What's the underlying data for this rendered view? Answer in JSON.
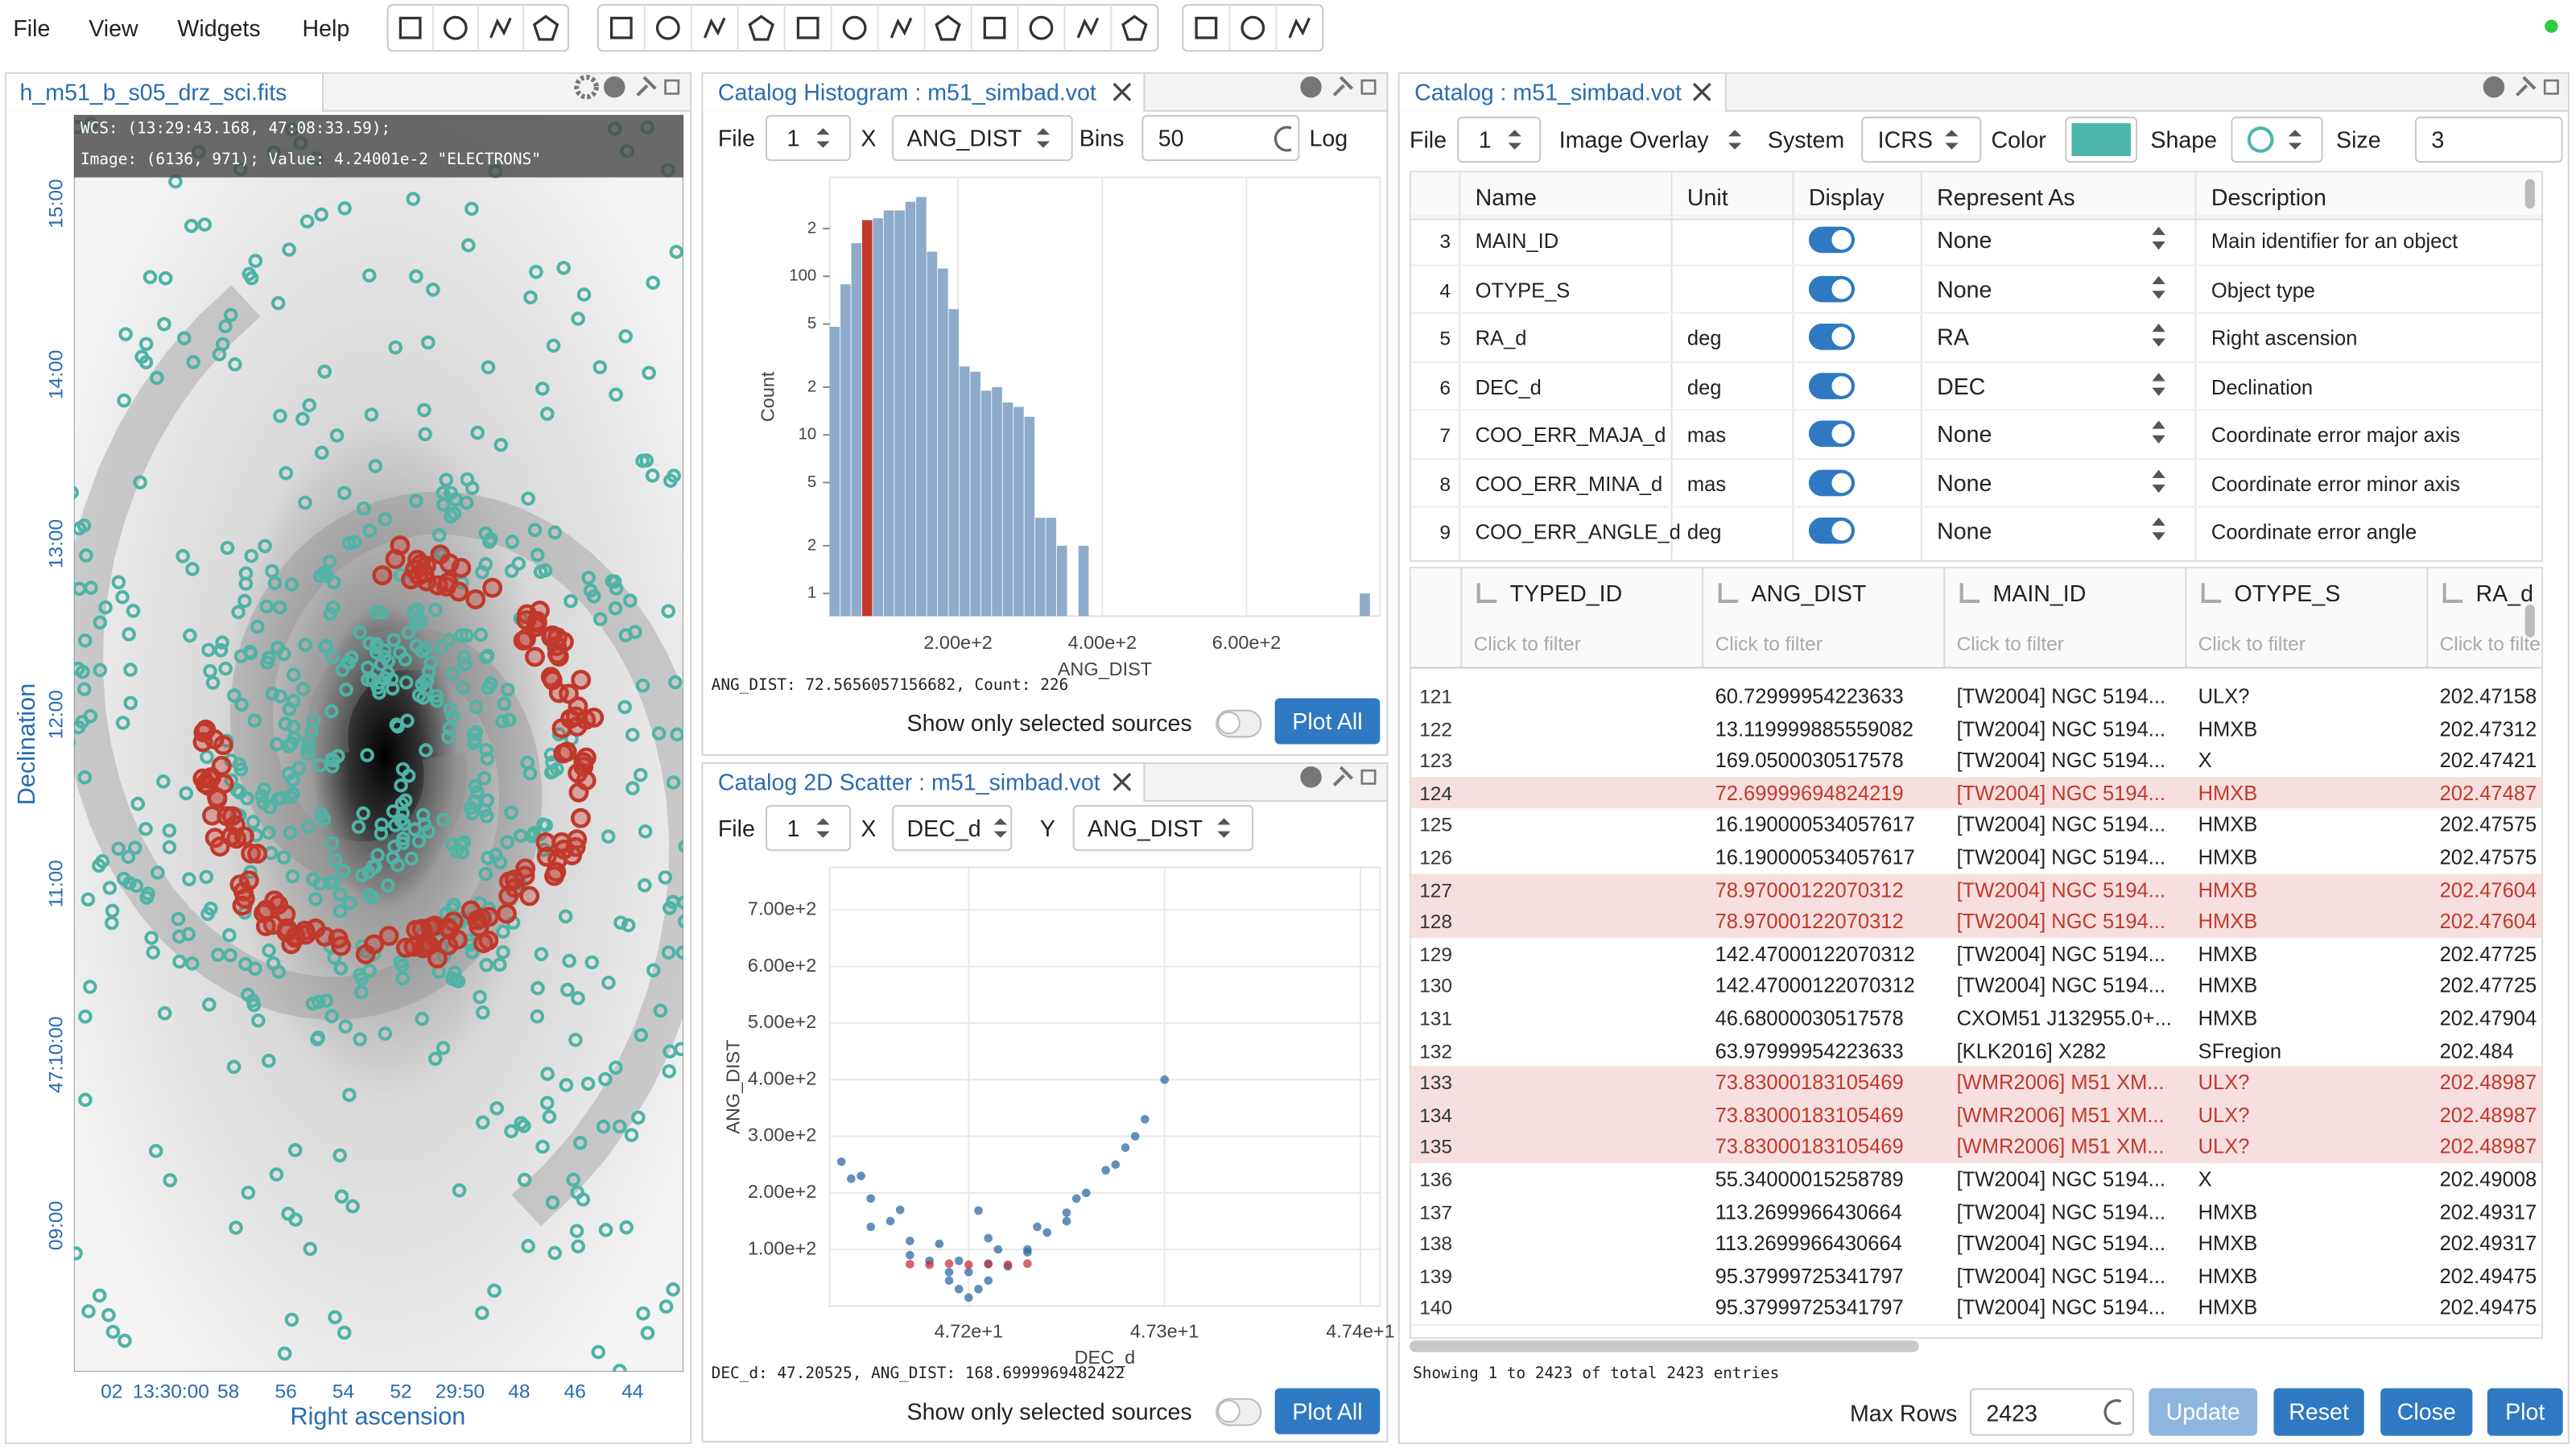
{
  "menu": [
    "File",
    "View",
    "Widgets",
    "Help"
  ],
  "image_view": {
    "title": "h_m51_b_s05_drz_sci.fits",
    "cursor_wcs": "WCS: (13:29:43.168, 47:08:33.59);",
    "cursor_value": "Image: (6136, 971); Value:  4.24001e-2 \"ELECTRONS\"",
    "y_axis_label": "Declination",
    "x_axis_label": "Right ascension",
    "y_tick_labels": [
      "15:00",
      "14:00",
      "13:00",
      "12:00",
      "11:00",
      "47:10:00",
      "09:00"
    ],
    "x_tick_labels": [
      "02",
      "13:30:00",
      "58",
      "56",
      "54",
      "52",
      "29:50",
      "48",
      "46",
      "44"
    ]
  },
  "histogram": {
    "title": "Catalog Histogram : m51_simbad.vot",
    "controls": {
      "file_label": "File",
      "file": "1",
      "x_label": "X",
      "x": "ANG_DIST",
      "bins_label": "Bins",
      "bins": "50",
      "log_label": "Log"
    },
    "chart_data": {
      "type": "histogram",
      "x_label": "ANG_DIST",
      "y_label": "Count",
      "bins": [
        22,
        37,
        52,
        67,
        82,
        97,
        112,
        127,
        142,
        157,
        172,
        187,
        202,
        217,
        232,
        247,
        262,
        277,
        292,
        307,
        322,
        337,
        352,
        367,
        382,
        397,
        412,
        427,
        442,
        457,
        472,
        487,
        502,
        517,
        532,
        547,
        562,
        577,
        592,
        607,
        622,
        637,
        652,
        667,
        682,
        697,
        712,
        727,
        742,
        757,
        772
      ],
      "counts": [
        48,
        89,
        162,
        226,
        232,
        260,
        260,
        295,
        316,
        143,
        112,
        62,
        27,
        25,
        19,
        20,
        16,
        15,
        13,
        3,
        3,
        2,
        0,
        2,
        0,
        0,
        0,
        0,
        0,
        0,
        0,
        0,
        0,
        0,
        0,
        0,
        0,
        0,
        0,
        0,
        0,
        0,
        0,
        0,
        0,
        0,
        0,
        0,
        0,
        1
      ],
      "color": "#8eabcb",
      "highlight_color": "#c0392b",
      "highlight_bin": 3,
      "log_y": true,
      "grid": true,
      "xlim": [
        22,
        785
      ],
      "ylim": [
        0.72,
        420
      ],
      "xticks": [
        {
          "value": 200,
          "label": "2.00e+2"
        },
        {
          "value": 400,
          "label": "4.00e+2"
        },
        {
          "value": 600,
          "label": "6.00e+2"
        }
      ],
      "yticks": [
        {
          "value": 200,
          "label": "2"
        },
        100,
        {
          "value": 50,
          "label": "5"
        },
        {
          "value": 20,
          "label": "2"
        },
        10,
        {
          "value": 5,
          "label": "5"
        },
        2,
        1
      ]
    },
    "status": "ANG_DIST: 72.5656057156682, Count: 226",
    "show_selected": "Show only selected sources",
    "plot_all": "Plot All"
  },
  "scatter": {
    "title": "Catalog 2D Scatter : m51_simbad.vot",
    "controls": {
      "file_label": "File",
      "file": "1",
      "x_label": "X",
      "x": "DEC_d",
      "y_label": "Y",
      "y": "ANG_DIST"
    },
    "chart_data": {
      "type": "scatter",
      "x_label": "DEC_d",
      "y_label": "ANG_DIST",
      "grid": true,
      "xlim": [
        47.129,
        47.41
      ],
      "ylim": [
        0,
        775
      ],
      "xticks": [
        {
          "value": 47.2,
          "label": "4.72e+1"
        },
        {
          "value": 47.3,
          "label": "4.73e+1"
        },
        {
          "value": 47.4,
          "label": "4.74e+1"
        }
      ],
      "yticks": [
        {
          "value": 100,
          "label": "1.00e+2"
        },
        {
          "value": 200,
          "label": "2.00e+2"
        },
        {
          "value": 300,
          "label": "3.00e+2"
        },
        {
          "value": 400,
          "label": "4.00e+2"
        },
        {
          "value": 500,
          "label": "5.00e+2"
        },
        {
          "value": 600,
          "label": "6.00e+2"
        },
        {
          "value": 700,
          "label": "7.00e+2"
        }
      ],
      "series": [
        {
          "color": "#2e6aa6",
          "x": [
            47.135,
            47.14,
            47.15,
            47.16,
            47.17,
            47.18,
            47.19,
            47.195,
            47.2,
            47.205,
            47.21,
            47.22,
            47.23,
            47.24,
            47.25,
            47.26,
            47.27,
            47.28,
            47.29,
            47.3,
            47.15,
            47.17,
            47.19,
            47.21,
            47.23,
            47.25,
            47.205,
            47.2,
            47.195,
            47.21,
            47.145,
            47.165,
            47.185,
            47.215,
            47.235,
            47.255,
            47.275,
            47.285
          ],
          "y": [
            255,
            225,
            190,
            150,
            115,
            80,
            45,
            30,
            15,
            30,
            45,
            70,
            100,
            130,
            165,
            200,
            240,
            280,
            330,
            400,
            140,
            90,
            60,
            120,
            95,
            150,
            168.7,
            60,
            80,
            75,
            230,
            170,
            110,
            100,
            140,
            190,
            250,
            300
          ]
        },
        {
          "color": "#c8323a",
          "x": [
            47.17,
            47.18,
            47.19,
            47.2,
            47.21,
            47.22,
            47.23
          ],
          "y": [
            74,
            73,
            75,
            73,
            74,
            73,
            75
          ]
        }
      ]
    },
    "status": "DEC_d: 47.20525, ANG_DIST: 168.6999969482422",
    "show_selected": "Show only selected sources",
    "plot_all": "Plot All"
  },
  "catalog": {
    "title": "Catalog : m51_simbad.vot",
    "controls": {
      "file_label": "File",
      "file": "1",
      "overlay": "Image Overlay",
      "system_label": "System",
      "system": "ICRS",
      "color_label": "Color",
      "shape_label": "Shape",
      "size_label": "Size",
      "size": "3"
    },
    "columns_table": {
      "headers": [
        "Name",
        "Unit",
        "Display",
        "Represent As",
        "Description"
      ],
      "rows": [
        [
          "3",
          "MAIN_ID",
          null,
          "None",
          "Main identifier for an object"
        ],
        [
          "4",
          "OTYPE_S",
          null,
          "None",
          "Object type"
        ],
        [
          "5",
          "RA_d",
          "deg",
          "RA",
          "Right ascension"
        ],
        [
          "6",
          "DEC_d",
          "deg",
          "DEC",
          "Declination"
        ],
        [
          "7",
          "COO_ERR_MAJA_d",
          "mas",
          "None",
          "Coordinate error major axis"
        ],
        [
          "8",
          "COO_ERR_MINA_d",
          "mas",
          "None",
          "Coordinate error minor axis"
        ],
        [
          "9",
          "COO_ERR_ANGLE_d",
          "deg",
          "None",
          "Coordinate error angle"
        ]
      ]
    },
    "data_table": {
      "headers": [
        "TYPED_ID",
        "ANG_DIST",
        "MAIN_ID",
        "OTYPE_S",
        "RA_d"
      ],
      "filter_placeholder": "Click to filter",
      "rows": [
        [
          "121",
          "60.72999954223633",
          "[TW2004] NGC 5194...",
          "ULX?",
          "202.47158"
        ],
        [
          "122",
          "13.119999885559082",
          "[TW2004] NGC 5194...",
          "HMXB",
          "202.47312"
        ],
        [
          "123",
          "169.0500030517578",
          "[TW2004] NGC 5194...",
          "X",
          "202.47421"
        ],
        [
          "124",
          "72.69999694824219",
          "[TW2004] NGC 5194...",
          "HMXB",
          "202.47487"
        ],
        [
          "125",
          "16.190000534057617",
          "[TW2004] NGC 5194...",
          "HMXB",
          "202.47575"
        ],
        [
          "126",
          "16.190000534057617",
          "[TW2004] NGC 5194...",
          "HMXB",
          "202.47575"
        ],
        [
          "127",
          "78.97000122070312",
          "[TW2004] NGC 5194...",
          "HMXB",
          "202.47604"
        ],
        [
          "128",
          "78.97000122070312",
          "[TW2004] NGC 5194...",
          "HMXB",
          "202.47604"
        ],
        [
          "129",
          "142.47000122070312",
          "[TW2004] NGC 5194...",
          "HMXB",
          "202.47725"
        ],
        [
          "130",
          "142.47000122070312",
          "[TW2004] NGC 5194...",
          "HMXB",
          "202.47725"
        ],
        [
          "131",
          "46.68000030517578",
          "CXOM51 J132955.0+...",
          "HMXB",
          "202.47904"
        ],
        [
          "132",
          "63.97999954223633",
          "[KLK2016] X282",
          "SFregion",
          "202.484"
        ],
        [
          "133",
          "73.83000183105469",
          "[WMR2006] M51 XM...",
          "ULX?",
          "202.48987"
        ],
        [
          "134",
          "73.83000183105469",
          "[WMR2006] M51 XM...",
          "ULX?",
          "202.48987"
        ],
        [
          "135",
          "73.83000183105469",
          "[WMR2006] M51 XM...",
          "ULX?",
          "202.48987"
        ],
        [
          "136",
          "55.34000015258789",
          "[TW2004] NGC 5194...",
          "X",
          "202.49008"
        ],
        [
          "137",
          "113.2699966430664",
          "[TW2004] NGC 5194...",
          "HMXB",
          "202.49317"
        ],
        [
          "138",
          "113.2699966430664",
          "[TW2004] NGC 5194...",
          "HMXB",
          "202.49317"
        ],
        [
          "139",
          "95.37999725341797",
          "[TW2004] NGC 5194...",
          "HMXB",
          "202.49475"
        ],
        [
          "140",
          "95.37999725341797",
          "[TW2004] NGC 5194...",
          "HMXB",
          "202.49475"
        ]
      ],
      "selected": [
        3,
        6,
        7,
        12,
        13,
        14
      ]
    },
    "footer": {
      "summary": "Showing 1 to 2423 of total 2423 entries",
      "max_rows_label": "Max Rows",
      "max_rows": "2423",
      "buttons": [
        "Update",
        "Reset",
        "Close",
        "Plot"
      ]
    }
  }
}
